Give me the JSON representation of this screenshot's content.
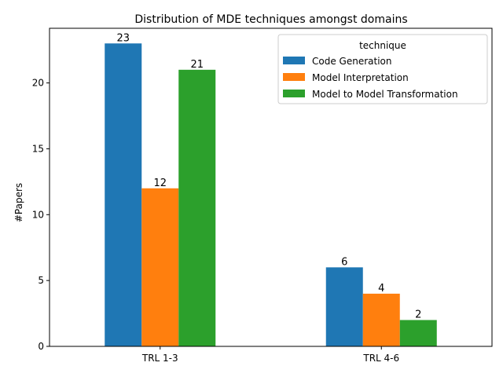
{
  "chart_data": {
    "type": "bar",
    "title": "Distribution of MDE techniques amongst domains",
    "xlabel": "",
    "ylabel": "#Papers",
    "categories": [
      "TRL 1-3",
      "TRL 4-6"
    ],
    "series": [
      {
        "name": "Code Generation",
        "values": [
          23,
          6
        ],
        "color": "#1f77b4"
      },
      {
        "name": "Model Interpretation",
        "values": [
          12,
          4
        ],
        "color": "#ff7f0e"
      },
      {
        "name": "Model to Model Transformation",
        "values": [
          21,
          2
        ],
        "color": "#2ca02c"
      }
    ],
    "ylim": [
      0,
      24.15
    ],
    "yticks": [
      0,
      5,
      10,
      15,
      20
    ],
    "legend": {
      "title": "technique",
      "position": "top-right"
    },
    "grid": false,
    "data_labels": true
  }
}
